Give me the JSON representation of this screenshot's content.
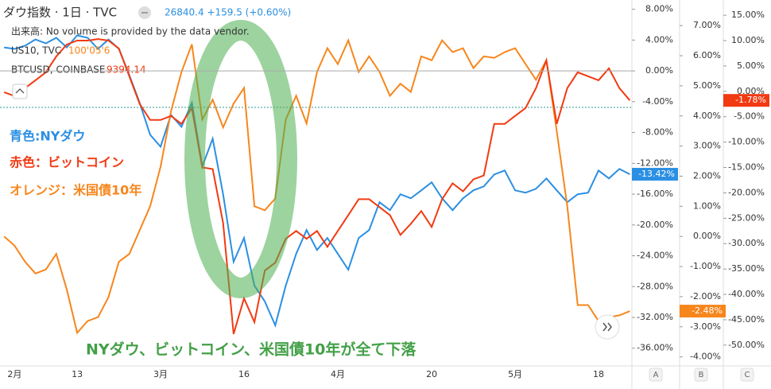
{
  "chart_data": {
    "type": "line",
    "header": {
      "symbol": "ダウ指数 · 1日 · TVC",
      "quote": "26840.4 +159.5 (+0.60%)",
      "volume_note": "出来高: No volume is provided by the data vendor.",
      "legend_rows": [
        {
          "name": "US10, TVC",
          "value": "100'05'6"
        },
        {
          "name": "BTCUSD, COINBASE",
          "value": "9394.14"
        }
      ]
    },
    "annotations": [
      "青色:NYダウ",
      "赤色：ビットコイン",
      "オレンジ：米国債10年",
      "NYダウ、ビットコイン、米国債10年が全て下落"
    ],
    "categories": [
      null,
      "2月",
      null,
      null,
      null,
      null,
      null,
      "13",
      null,
      null,
      null,
      null,
      null,
      null,
      null,
      "3月",
      null,
      null,
      null,
      null,
      null,
      null,
      null,
      "16",
      null,
      null,
      null,
      null,
      null,
      null,
      null,
      null,
      "4月",
      null,
      null,
      null,
      null,
      null,
      null,
      null,
      null,
      "20",
      null,
      null,
      null,
      null,
      null,
      null,
      null,
      "5月",
      null,
      null,
      null,
      null,
      null,
      null,
      null,
      "18",
      null,
      null,
      null
    ],
    "series": [
      {
        "name": "NYダウ",
        "color": "#2b8fe3",
        "axis": "y",
        "last_label": "-13.42%",
        "values": [
          3.05,
          2.85,
          3.26,
          4.08,
          3.57,
          4.29,
          3.05,
          4.6,
          4.29,
          2.85,
          4.08,
          2.85,
          -0.56,
          -4.16,
          -8.29,
          -9.84,
          -5.71,
          -7.26,
          -4.16,
          -12.41,
          -8.8,
          -16.02,
          -24.78,
          -21.69,
          -27.88,
          -29.94,
          -33.03,
          -27.88,
          -23.75,
          -20.66,
          -23.24,
          -21.69,
          -23.75,
          -25.81,
          -21.69,
          -20.66,
          -17.05,
          -18.08,
          -16.02,
          -16.54,
          -15.51,
          -14.47,
          -16.54,
          -18.08,
          -16.54,
          -15.51,
          -14.99,
          -13.44,
          -12.93,
          -15.51,
          -15.81,
          -15.3,
          -13.96,
          -15.51,
          -17.05,
          -16.02,
          -15.81,
          -12.93,
          -13.96,
          -12.72,
          -13.42
        ]
      },
      {
        "name": "米国債10年",
        "color": "#f7861c",
        "axis": "y2",
        "last_label": "-2.48%",
        "values": [
          0,
          -0.31,
          -0.84,
          -1.23,
          -1.1,
          -0.58,
          -1.76,
          -3.2,
          -2.81,
          -2.68,
          -2.02,
          -0.84,
          -0.58,
          0.21,
          1.0,
          2.31,
          4.15,
          5.46,
          6.38,
          3.88,
          4.54,
          3.62,
          4.41,
          4.93,
          1.0,
          0.87,
          1.26,
          3.88,
          4.67,
          3.75,
          5.46,
          6.25,
          5.72,
          6.51,
          5.46,
          5.98,
          5.46,
          4.67,
          5.07,
          4.8,
          5.98,
          5.85,
          6.51,
          6.12,
          6.25,
          5.59,
          5.98,
          5.93,
          6.12,
          6.25,
          5.72,
          5.2,
          5.85,
          3.49,
          1.0,
          -2.28,
          -2.28,
          -2.81,
          -2.68,
          -2.62,
          -2.48
        ]
      },
      {
        "name": "ビットコイン",
        "color": "#f23a12",
        "axis": "y3",
        "last_label": "-1.78%",
        "values": [
          -0.16,
          -0.94,
          0.63,
          2.19,
          3.75,
          6.88,
          9.22,
          10.0,
          10.0,
          10.31,
          10.0,
          8.44,
          2.97,
          -2.5,
          -5.63,
          -5.63,
          -4.84,
          -6.41,
          -3.28,
          -15.0,
          -15.31,
          -25.94,
          -47.81,
          -40.78,
          -45.47,
          -35.31,
          -33.75,
          -29.06,
          -27.5,
          -29.06,
          -27.5,
          -30.63,
          -27.5,
          -24.38,
          -21.25,
          -21.25,
          -22.81,
          -24.38,
          -28.28,
          -26.09,
          -23.59,
          -26.72,
          -21.25,
          -18.13,
          -19.69,
          -17.34,
          -16.56,
          -6.41,
          -6.41,
          -4.84,
          -3.28,
          0.63,
          6.09,
          -6.41,
          0.63,
          3.75,
          2.97,
          2.19,
          4.53,
          0.63,
          -1.78
        ]
      }
    ],
    "ylim": [
      -38.3,
      9.2
    ],
    "yticks": [
      {
        "value": 8,
        "label": "8.00%"
      },
      {
        "value": 4,
        "label": "4.00%"
      },
      {
        "value": 0,
        "label": "0.00%"
      },
      {
        "value": -4,
        "label": "-4.00%"
      },
      {
        "value": -8,
        "label": "-8.00%"
      },
      {
        "value": -12,
        "label": "-12.00%"
      },
      {
        "value": -16,
        "label": "-16.00%"
      },
      {
        "value": -20,
        "label": "-20.00%"
      },
      {
        "value": -24,
        "label": "-24.00%"
      },
      {
        "value": -28,
        "label": "-28.00%"
      },
      {
        "value": -32,
        "label": "-32.00%"
      },
      {
        "value": -36,
        "label": "-36.00%"
      }
    ],
    "y2lim": [
      -4.3,
      7.85
    ],
    "y2ticks": [
      {
        "value": 7,
        "label": "7.00%"
      },
      {
        "value": 6,
        "label": "6.00%"
      },
      {
        "value": 5,
        "label": "5.00%"
      },
      {
        "value": 4,
        "label": "4.00%"
      },
      {
        "value": 3,
        "label": "3.00%"
      },
      {
        "value": 2,
        "label": "2.00%"
      },
      {
        "value": 1,
        "label": "1.00%"
      },
      {
        "value": 0,
        "label": "0.00%"
      },
      {
        "value": -1,
        "label": "-1.00%"
      },
      {
        "value": -2,
        "label": "-2.00%"
      },
      {
        "value": -3,
        "label": "-3.00%"
      },
      {
        "value": -4,
        "label": "-4.00%"
      }
    ],
    "y3lim": [
      -54.1,
      18
    ],
    "y3ticks": [
      {
        "value": 15,
        "label": "15.00%"
      },
      {
        "value": 10,
        "label": "10.00%"
      },
      {
        "value": 5,
        "label": "5.00%"
      },
      {
        "value": 0,
        "label": "0.00%"
      },
      {
        "value": -5,
        "label": "-5.00%"
      },
      {
        "value": -10,
        "label": "-10.00%"
      },
      {
        "value": -15,
        "label": "-15.00%"
      },
      {
        "value": -20,
        "label": "-20.00%"
      },
      {
        "value": -25,
        "label": "-25.00%"
      },
      {
        "value": -30,
        "label": "-30.00%"
      },
      {
        "value": -35,
        "label": "-35.00%"
      },
      {
        "value": -40,
        "label": "-40.00%"
      },
      {
        "value": -45,
        "label": "-45.00%"
      },
      {
        "value": -50,
        "label": "-50.00%"
      }
    ],
    "axis_buttons": [
      "A",
      "B",
      "C"
    ]
  }
}
